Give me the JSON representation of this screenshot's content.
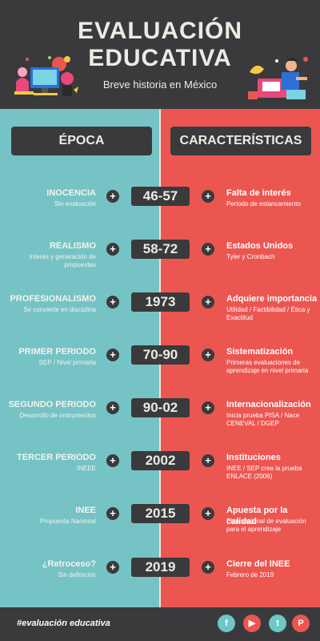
{
  "header": {
    "title_line1": "EVALUACIÓN",
    "title_line2": "EDUCATIVA",
    "subtitle": "Breve historia en México"
  },
  "columns": {
    "left": "ÉPOCA",
    "right": "CARACTERÍSTICAS"
  },
  "timeline": [
    {
      "era": "INOCENCIA",
      "era_sub": "Sin evaluación",
      "year": "46-57",
      "feature": "Falta de interés",
      "feature_sub": "Periodo de estancamiento"
    },
    {
      "era": "REALISMO",
      "era_sub": "Interés y generación de propuestas",
      "year": "58-72",
      "feature": "Estados Unidos",
      "feature_sub": "Tyler y Cronbach"
    },
    {
      "era": "PROFESIONALISMO",
      "era_sub": "Se  convierte en disciplina",
      "year": "1973",
      "feature": "Adquiere importancia",
      "feature_sub": "Utilidad / Factibilidad / Ética y Exactitud"
    },
    {
      "era": "PRIMER PERIODO",
      "era_sub": "SEP / Nivel primaria",
      "year": "70-90",
      "feature": "Sistematización",
      "feature_sub": "Primeras evaluaciones de aprendizaje en nivel primaria"
    },
    {
      "era": "SEGUNDO PERIODO",
      "era_sub": "Desarrollo de instrumentos",
      "year": "90-02",
      "feature": "Internacionalización",
      "feature_sub": "Inicia prueba PISA / Nace CENEVAL / DGEP"
    },
    {
      "era": "TERCER PERIODO",
      "era_sub": "INEEE",
      "year": "2002",
      "feature": "Instituciones",
      "feature_sub": "INEE / SEP crea la prueba ENLACE (2006)"
    },
    {
      "era": "INEE",
      "era_sub": "Propuesta Nacional",
      "year": "2015",
      "feature": "Apuesta por la calidad",
      "feature_sub": "Plan nacional de evaluación para el aprendizaje"
    },
    {
      "era": "¿Retroceso?",
      "era_sub": "Sin definición",
      "year": "2019",
      "feature": "Cierre del INEE",
      "feature_sub": "Febrero de 2019"
    }
  ],
  "footer": {
    "hashtag": "#evaluación educativa",
    "social": [
      {
        "icon": "facebook-icon",
        "glyph": "f",
        "color": "#6ec6c6"
      },
      {
        "icon": "youtube-icon",
        "glyph": "▶",
        "color": "#ec5651"
      },
      {
        "icon": "twitter-icon",
        "glyph": "t",
        "color": "#6ec6c6"
      },
      {
        "icon": "pinterest-icon",
        "glyph": "P",
        "color": "#ec5651"
      }
    ]
  },
  "colors": {
    "dark": "#3a3a3c",
    "teal": "#75c3c5",
    "coral": "#ec5651",
    "cream": "#ecebe4"
  }
}
